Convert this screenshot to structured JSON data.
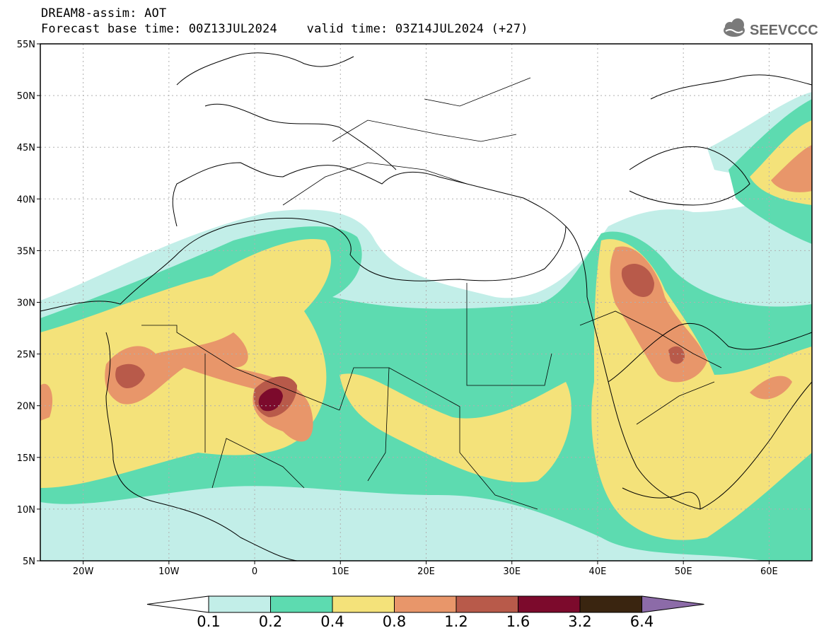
{
  "header": {
    "title_line1": "DREAM8-assim: AOT",
    "title_line2": "Forecast base time: 00Z13JUL2024    valid time: 03Z14JUL2024 (+27)",
    "logo_text": "SEEVCCC"
  },
  "map": {
    "lon_range": [
      -25,
      65
    ],
    "lat_range": [
      5,
      55
    ],
    "lat_ticks": [
      {
        "value": 55,
        "label": "55N"
      },
      {
        "value": 50,
        "label": "50N"
      },
      {
        "value": 45,
        "label": "45N"
      },
      {
        "value": 40,
        "label": "40N"
      },
      {
        "value": 35,
        "label": "35N"
      },
      {
        "value": 30,
        "label": "30N"
      },
      {
        "value": 25,
        "label": "25N"
      },
      {
        "value": 20,
        "label": "20N"
      },
      {
        "value": 15,
        "label": "15N"
      },
      {
        "value": 10,
        "label": "10N"
      },
      {
        "value": 5,
        "label": "5N"
      }
    ],
    "lon_ticks": [
      {
        "value": -20,
        "label": "20W"
      },
      {
        "value": -10,
        "label": "10W"
      },
      {
        "value": 0,
        "label": "0"
      },
      {
        "value": 10,
        "label": "10E"
      },
      {
        "value": 20,
        "label": "20E"
      },
      {
        "value": 30,
        "label": "30E"
      },
      {
        "value": 40,
        "label": "40E"
      },
      {
        "value": 50,
        "label": "50E"
      },
      {
        "value": 60,
        "label": "60E"
      }
    ],
    "grid": true
  },
  "colorbar": {
    "labels": [
      "0.1",
      "0.2",
      "0.4",
      "0.8",
      "1.2",
      "1.6",
      "3.2",
      "6.4"
    ],
    "colors": [
      "#ffffff",
      "#c2eee8",
      "#5ddbb0",
      "#f4e27a",
      "#e8966a",
      "#b85a4a",
      "#7c0a2c",
      "#3a2510",
      "#8c6ba8"
    ]
  }
}
